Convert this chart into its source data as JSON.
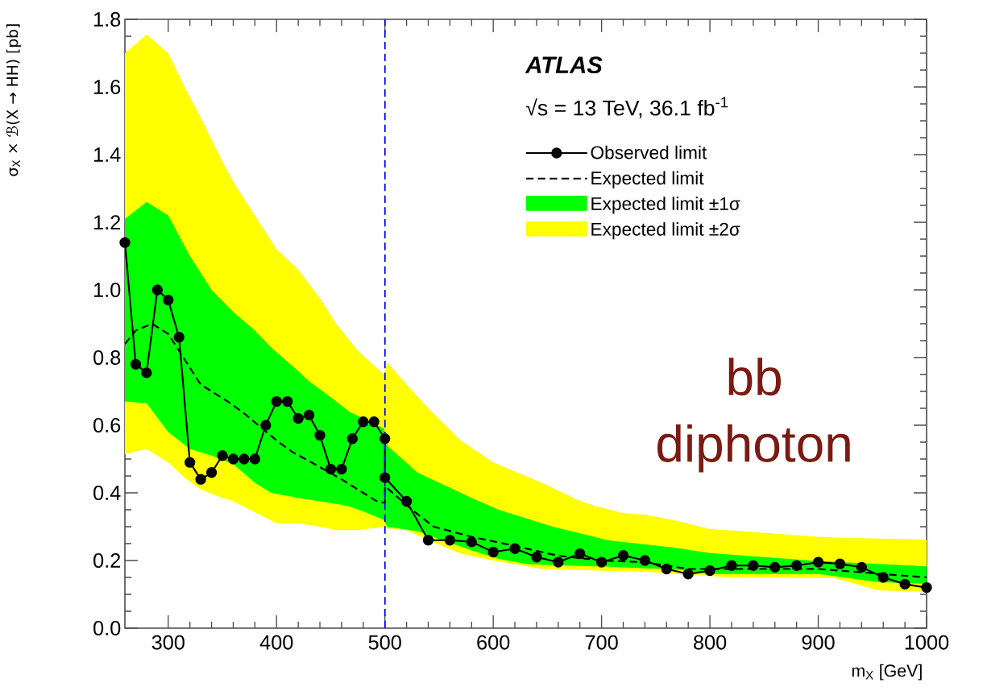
{
  "chart_data": {
    "type": "line",
    "xlabel": "m$_{X}$ [GeV]",
    "ylabel": "σ$_{X}$ × ℬ(X → HH) [pb]",
    "annotations": [
      "ATLAS",
      "√s = 13 TeV, 36.1 fb$^{-1}$",
      "bb diphoton"
    ],
    "xlim": [
      260,
      1000
    ],
    "ylim": [
      0,
      1.8
    ],
    "xticks": [
      300,
      400,
      500,
      600,
      700,
      800,
      900,
      1000
    ],
    "yticks": [
      {
        "value": 0,
        "label": "0.0"
      },
      {
        "value": 0.2,
        "label": "0.2"
      },
      {
        "value": 0.4,
        "label": "0.4"
      },
      {
        "value": 0.6,
        "label": "0.6"
      },
      {
        "value": 0.8,
        "label": "0.8"
      },
      {
        "value": 1.0,
        "label": "1.0"
      },
      {
        "value": 1.2,
        "label": "1.2"
      },
      {
        "value": 1.4,
        "label": "1.4"
      },
      {
        "value": 1.6,
        "label": "1.6"
      },
      {
        "value": 1.8,
        "label": "1.8"
      }
    ],
    "legend": "top right",
    "ref_lines": [
      {
        "axis": "x",
        "value": 500,
        "color": "#0000ff",
        "line_style": "dashed"
      }
    ],
    "series": [
      {
        "name": "Expected limit ±2σ",
        "type": "area",
        "color": "#ffff00",
        "values": [
          null,
          null,
          null,
          null,
          null,
          null,
          null,
          null,
          null,
          null,
          null,
          null,
          null,
          null,
          null,
          null,
          null,
          null,
          null,
          null,
          null,
          null,
          null,
          null,
          null,
          null,
          null,
          null,
          null,
          null
        ],
        "x": [
          260,
          280,
          300,
          315,
          330,
          350,
          360,
          400,
          420,
          440,
          455,
          475,
          499,
          502,
          520,
          540,
          570,
          600,
          645,
          680,
          695,
          720,
          740,
          770,
          800,
          815,
          900,
          915,
          955,
          1000
        ],
        "upper": [
          1.7,
          1.755,
          1.7,
          1.6,
          1.51,
          1.38,
          1.32,
          1.12,
          1.06,
          0.975,
          0.9,
          0.82,
          0.75,
          0.786,
          0.72,
          0.65,
          0.555,
          0.49,
          0.43,
          0.376,
          0.36,
          0.34,
          0.335,
          0.317,
          0.293,
          0.29,
          0.27,
          0.268,
          0.265,
          0.262
        ],
        "lower": [
          0.515,
          0.53,
          0.49,
          0.445,
          0.41,
          0.385,
          0.375,
          0.31,
          0.31,
          0.3,
          0.29,
          0.29,
          0.3,
          0.295,
          0.29,
          0.26,
          0.22,
          0.2,
          0.175,
          0.172,
          0.17,
          0.168,
          0.167,
          0.16,
          0.155,
          0.15,
          0.148,
          0.148,
          0.112,
          0.107
        ]
      },
      {
        "name": "Expected limit ±1σ",
        "type": "area",
        "color": "#00ff00",
        "values": [
          null,
          null,
          null,
          null,
          null,
          null,
          null,
          null,
          null,
          null,
          null,
          null,
          null,
          null,
          null,
          null,
          null,
          null,
          null,
          null,
          null,
          null,
          null,
          null,
          null,
          null,
          null
        ],
        "x": [
          260,
          280,
          300,
          320,
          340,
          360,
          380,
          395,
          420,
          430,
          450,
          467,
          480,
          499,
          502,
          530,
          580,
          605,
          630,
          655,
          693,
          705,
          767,
          800,
          900,
          955,
          1000
        ],
        "upper": [
          1.21,
          1.26,
          1.22,
          1.1,
          1.0,
          0.935,
          0.88,
          0.83,
          0.76,
          0.73,
          0.683,
          0.64,
          0.62,
          0.59,
          0.54,
          0.46,
          0.385,
          0.35,
          0.325,
          0.3,
          0.27,
          0.26,
          0.238,
          0.222,
          0.198,
          0.19,
          0.183
        ],
        "lower": [
          0.67,
          0.665,
          0.58,
          0.53,
          0.51,
          0.485,
          0.43,
          0.4,
          0.385,
          0.38,
          0.37,
          0.36,
          0.345,
          0.32,
          0.3,
          0.286,
          0.23,
          0.205,
          0.19,
          0.186,
          0.183,
          0.182,
          0.174,
          0.16,
          0.16,
          0.136,
          0.131
        ]
      },
      {
        "name": "Expected limit",
        "type": "line",
        "color": "#000000",
        "line_style": "dashed",
        "marker": "none",
        "x": [
          260,
          270,
          285,
          300,
          310,
          320,
          330,
          340,
          355,
          370,
          385,
          400,
          415,
          435,
          460,
          480,
          492,
          500,
          500,
          525,
          545,
          580,
          620,
          660,
          700,
          740,
          780,
          840,
          900,
          960,
          1000
        ],
        "values": [
          0.84,
          0.88,
          0.9,
          0.87,
          0.82,
          0.77,
          0.72,
          0.7,
          0.67,
          0.635,
          0.595,
          0.555,
          0.52,
          0.485,
          0.44,
          0.4,
          0.376,
          0.37,
          0.42,
          0.35,
          0.3,
          0.27,
          0.243,
          0.214,
          0.2,
          0.195,
          0.175,
          0.175,
          0.175,
          0.16,
          0.15
        ]
      },
      {
        "name": "Observed limit",
        "type": "line",
        "color": "#000000",
        "line_style": "solid",
        "marker": "circle",
        "x": [
          260,
          270,
          280,
          290,
          300,
          310,
          320,
          330,
          340,
          350,
          360,
          370,
          380,
          390,
          400,
          410,
          420,
          430,
          440,
          450,
          460,
          470,
          480,
          490,
          500,
          500,
          520,
          540,
          560,
          580,
          600,
          620,
          640,
          660,
          680,
          700,
          720,
          740,
          760,
          780,
          800,
          820,
          840,
          860,
          880,
          900,
          920,
          940,
          960,
          980,
          1000
        ],
        "values": [
          1.14,
          0.78,
          0.755,
          1.0,
          0.97,
          0.86,
          0.49,
          0.44,
          0.46,
          0.51,
          0.5,
          0.5,
          0.5,
          0.6,
          0.67,
          0.67,
          0.62,
          0.63,
          0.57,
          0.47,
          0.47,
          0.56,
          0.61,
          0.61,
          0.56,
          0.445,
          0.375,
          0.26,
          0.26,
          0.255,
          0.225,
          0.235,
          0.21,
          0.195,
          0.22,
          0.195,
          0.215,
          0.2,
          0.175,
          0.16,
          0.17,
          0.185,
          0.185,
          0.18,
          0.185,
          0.195,
          0.19,
          0.18,
          0.15,
          0.13,
          0.12
        ]
      }
    ]
  }
}
